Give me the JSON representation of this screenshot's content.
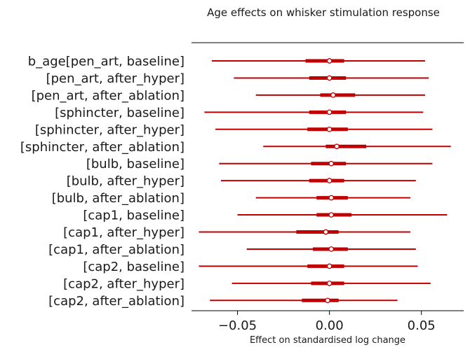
{
  "chart_data": {
    "type": "forest",
    "title": "Age effects on whisker stimulation response",
    "xlabel": "Effect on standardised log change",
    "xlim": [
      -0.075,
      0.073
    ],
    "xticks": [
      -0.05,
      0.0,
      0.05
    ],
    "xtick_labels": [
      "−0.05",
      "0.00",
      "0.05"
    ],
    "color": "#c00000",
    "marker_fill": "#ffffff",
    "rows": [
      {
        "label": "b_age[pen_art, baseline]",
        "mean": 0.0,
        "hdi_low": -0.064,
        "hdi_high": 0.052,
        "iqr_low": -0.013,
        "iqr_high": 0.008
      },
      {
        "label": "[pen_art, after_hyper]",
        "mean": 0.0,
        "hdi_low": -0.052,
        "hdi_high": 0.054,
        "iqr_low": -0.011,
        "iqr_high": 0.009
      },
      {
        "label": "[pen_art, after_ablation]",
        "mean": 0.002,
        "hdi_low": -0.04,
        "hdi_high": 0.052,
        "iqr_low": -0.005,
        "iqr_high": 0.014
      },
      {
        "label": "[sphincter, baseline]",
        "mean": 0.0,
        "hdi_low": -0.068,
        "hdi_high": 0.051,
        "iqr_low": -0.011,
        "iqr_high": 0.009
      },
      {
        "label": "[sphincter, after_hyper]",
        "mean": 0.0,
        "hdi_low": -0.062,
        "hdi_high": 0.056,
        "iqr_low": -0.012,
        "iqr_high": 0.01
      },
      {
        "label": "[sphincter, after_ablation]",
        "mean": 0.004,
        "hdi_low": -0.036,
        "hdi_high": 0.066,
        "iqr_low": -0.002,
        "iqr_high": 0.02
      },
      {
        "label": "[bulb, baseline]",
        "mean": 0.001,
        "hdi_low": -0.06,
        "hdi_high": 0.056,
        "iqr_low": -0.01,
        "iqr_high": 0.009
      },
      {
        "label": "[bulb, after_hyper]",
        "mean": 0.0,
        "hdi_low": -0.059,
        "hdi_high": 0.047,
        "iqr_low": -0.011,
        "iqr_high": 0.008
      },
      {
        "label": "[bulb, after_ablation]",
        "mean": 0.001,
        "hdi_low": -0.04,
        "hdi_high": 0.044,
        "iqr_low": -0.007,
        "iqr_high": 0.01
      },
      {
        "label": "[cap1, baseline]",
        "mean": 0.001,
        "hdi_low": -0.05,
        "hdi_high": 0.064,
        "iqr_low": -0.007,
        "iqr_high": 0.012
      },
      {
        "label": "[cap1, after_hyper]",
        "mean": -0.002,
        "hdi_low": -0.071,
        "hdi_high": 0.044,
        "iqr_low": -0.018,
        "iqr_high": 0.005
      },
      {
        "label": "[cap1, after_ablation]",
        "mean": 0.001,
        "hdi_low": -0.045,
        "hdi_high": 0.047,
        "iqr_low": -0.009,
        "iqr_high": 0.01
      },
      {
        "label": "[cap2, baseline]",
        "mean": 0.0,
        "hdi_low": -0.071,
        "hdi_high": 0.048,
        "iqr_low": -0.012,
        "iqr_high": 0.008
      },
      {
        "label": "[cap2, after_hyper]",
        "mean": 0.0,
        "hdi_low": -0.053,
        "hdi_high": 0.055,
        "iqr_low": -0.01,
        "iqr_high": 0.008
      },
      {
        "label": "[cap2, after_ablation]",
        "mean": -0.001,
        "hdi_low": -0.065,
        "hdi_high": 0.037,
        "iqr_low": -0.015,
        "iqr_high": 0.005
      }
    ]
  }
}
